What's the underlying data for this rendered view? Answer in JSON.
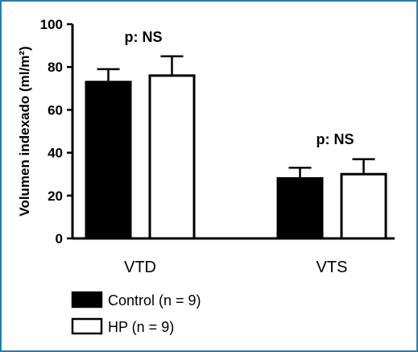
{
  "chart_data": {
    "type": "bar",
    "categories": [
      "VTD",
      "VTS"
    ],
    "series": [
      {
        "name": "Control (n = 9)",
        "values": [
          73,
          28
        ],
        "errors": [
          6,
          5
        ],
        "fill": "#000000"
      },
      {
        "name": "HP (n = 9)",
        "values": [
          76,
          30
        ],
        "errors": [
          9,
          7
        ],
        "fill": "#ffffff"
      }
    ],
    "ylabel": "Volumen indexado (ml/m²)",
    "ylim": [
      0,
      100
    ],
    "yticks": [
      0,
      20,
      40,
      60,
      80,
      100
    ],
    "annotations": [
      "p:  NS",
      "p:  NS"
    ],
    "legend_position": "bottom-left",
    "grid": false
  }
}
